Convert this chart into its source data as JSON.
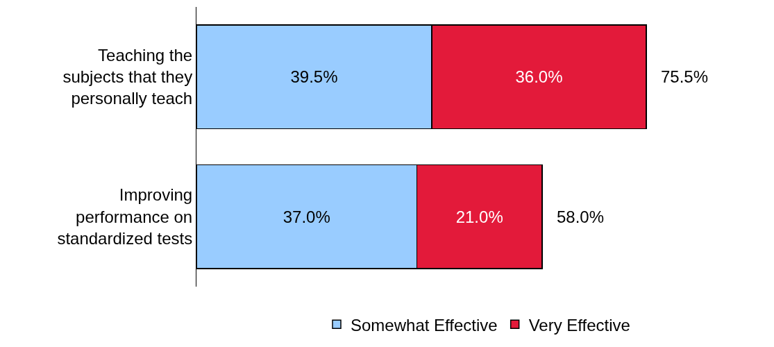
{
  "chart_data": {
    "type": "bar",
    "orientation": "horizontal",
    "stacked": true,
    "categories": [
      "Teaching the\nsubjects that they\npersonally teach",
      "Improving\nperformance on\nstandardized tests"
    ],
    "series": [
      {
        "name": "Somewhat Effective",
        "color": "#99ccff",
        "values": [
          39.5,
          37.0
        ],
        "value_labels": [
          "39.5%",
          "37.0%"
        ]
      },
      {
        "name": "Very Effective",
        "color": "#e31a3a",
        "values": [
          36.0,
          21.0
        ],
        "value_labels": [
          "36.0%",
          "21.0%"
        ]
      }
    ],
    "totals": [
      "75.5%",
      "58.0%"
    ],
    "legend": "bottom"
  }
}
